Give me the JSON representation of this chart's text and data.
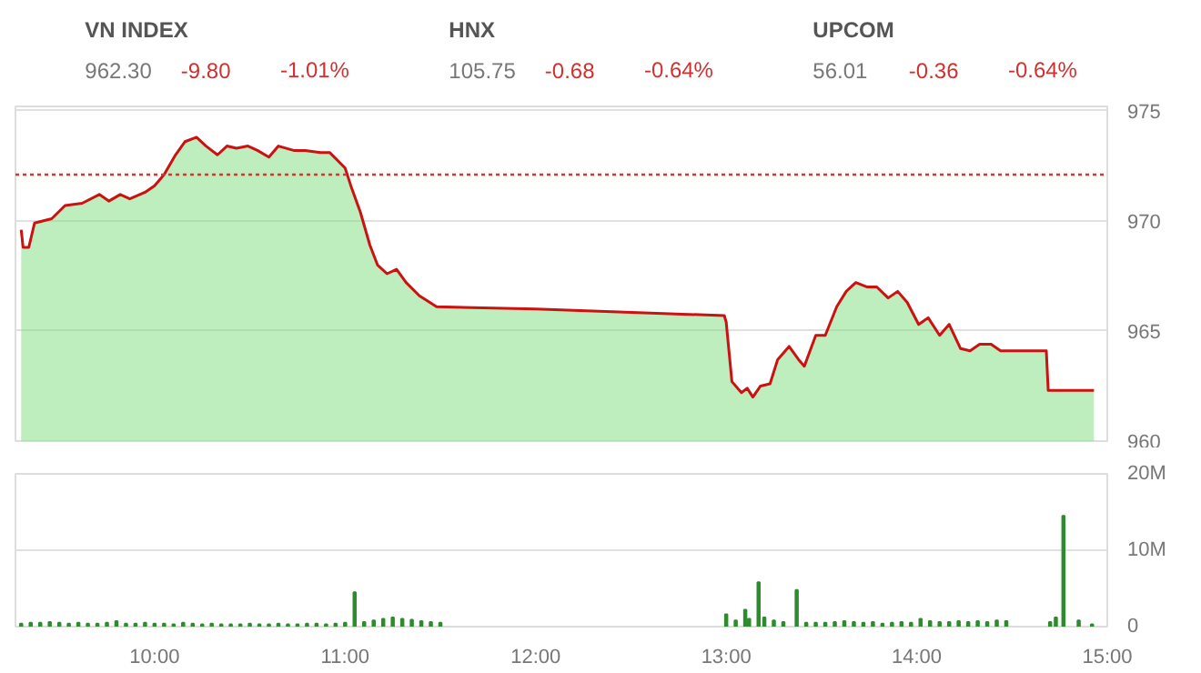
{
  "chart_data": [
    {
      "type": "other",
      "annotations": [
        "VN INDEX",
        "962.30",
        "-9.80",
        "-1.01%",
        "HNX",
        "105.75",
        "-0.68",
        "-0.64%",
        "UPCOM",
        "56.01",
        "-0.36",
        "-0.64%"
      ]
    },
    {
      "type": "area",
      "tick_labels": "y",
      "grid": "y",
      "xlim": [
        9.27,
        15.0
      ],
      "ylim": [
        960,
        975.2
      ],
      "yticks": [
        960,
        965,
        970,
        975
      ],
      "ref_lines": [
        {
          "axis": "y",
          "value": 972.1,
          "color": "#e03030",
          "line_style": "dotted"
        }
      ],
      "series": [
        {
          "color": "#7ddc7d",
          "x": [
            9.3,
            9.31,
            9.34,
            9.37,
            9.46,
            9.53,
            9.62,
            9.71,
            9.76,
            9.82,
            9.87,
            9.95,
            10.0,
            10.05,
            10.11,
            10.16,
            10.22,
            10.27,
            10.33,
            10.38,
            10.43,
            10.49,
            10.54,
            10.6,
            10.65,
            10.73,
            10.79,
            10.87,
            10.92,
            11.0,
            11.03,
            11.08,
            11.13,
            11.17,
            11.22,
            11.27,
            11.32,
            11.39,
            11.48,
            12.0,
            12.99,
            13.0,
            13.03,
            13.08,
            13.11,
            13.14,
            13.18,
            13.23,
            13.27,
            13.33,
            13.38,
            13.41,
            13.47,
            13.52,
            13.58,
            13.63,
            13.68,
            13.74,
            13.79,
            13.85,
            13.9,
            13.95,
            14.01,
            14.06,
            14.12,
            14.17,
            14.23,
            14.28,
            14.33,
            14.39,
            14.44,
            14.68,
            14.69,
            14.93
          ],
          "values": [
            969.6,
            968.8,
            968.8,
            969.9,
            970.1,
            970.7,
            970.8,
            971.2,
            970.9,
            971.2,
            971.0,
            971.3,
            971.6,
            972.1,
            973.0,
            973.6,
            973.8,
            973.4,
            973.0,
            973.4,
            973.3,
            973.4,
            973.2,
            972.9,
            973.4,
            973.2,
            973.2,
            973.1,
            973.1,
            972.4,
            971.6,
            970.4,
            968.9,
            968.0,
            967.6,
            967.8,
            967.2,
            966.6,
            966.1,
            966.0,
            965.7,
            965.4,
            962.7,
            962.2,
            962.4,
            962.0,
            962.5,
            962.6,
            963.7,
            964.3,
            963.7,
            963.4,
            964.8,
            964.8,
            966.1,
            966.8,
            967.2,
            967.0,
            967.0,
            966.5,
            966.8,
            966.3,
            965.3,
            965.6,
            964.8,
            965.3,
            964.2,
            964.1,
            964.4,
            964.4,
            964.1,
            964.1,
            962.3,
            962.3
          ]
        },
        {
          "type": "line",
          "color": "#cc1111",
          "x": [
            9.3,
            9.31,
            9.34,
            9.37,
            9.46,
            9.53,
            9.62,
            9.71,
            9.76,
            9.82,
            9.87,
            9.95,
            10.0,
            10.05,
            10.11,
            10.16,
            10.22,
            10.27,
            10.33,
            10.38,
            10.43,
            10.49,
            10.54,
            10.6,
            10.65,
            10.73,
            10.79,
            10.87,
            10.92,
            11.0,
            11.03,
            11.08,
            11.13,
            11.17,
            11.22,
            11.27,
            11.32,
            11.39,
            11.48,
            12.0,
            12.99,
            13.0,
            13.03,
            13.08,
            13.11,
            13.14,
            13.18,
            13.23,
            13.27,
            13.33,
            13.38,
            13.41,
            13.47,
            13.52,
            13.58,
            13.63,
            13.68,
            13.74,
            13.79,
            13.85,
            13.9,
            13.95,
            14.01,
            14.06,
            14.12,
            14.17,
            14.23,
            14.28,
            14.33,
            14.39,
            14.44,
            14.68,
            14.69,
            14.93
          ],
          "values": [
            969.6,
            968.8,
            968.8,
            969.9,
            970.1,
            970.7,
            970.8,
            971.2,
            970.9,
            971.2,
            971.0,
            971.3,
            971.6,
            972.1,
            973.0,
            973.6,
            973.8,
            973.4,
            973.0,
            973.4,
            973.3,
            973.4,
            973.2,
            972.9,
            973.4,
            973.2,
            973.2,
            973.1,
            973.1,
            972.4,
            971.6,
            970.4,
            968.9,
            968.0,
            967.6,
            967.8,
            967.2,
            966.6,
            966.1,
            966.0,
            965.7,
            965.4,
            962.7,
            962.2,
            962.4,
            962.0,
            962.5,
            962.6,
            963.7,
            964.3,
            963.7,
            963.4,
            964.8,
            964.8,
            966.1,
            966.8,
            967.2,
            967.0,
            967.0,
            966.5,
            966.8,
            966.3,
            965.3,
            965.6,
            964.8,
            965.3,
            964.2,
            964.1,
            964.4,
            964.4,
            964.1,
            964.1,
            962.3,
            962.3
          ]
        }
      ]
    },
    {
      "type": "bar",
      "grid": "y",
      "xlim": [
        9.27,
        15.0
      ],
      "xticks": [
        {
          "value": 10,
          "label": "10:00"
        },
        {
          "value": 11,
          "label": "11:00"
        },
        {
          "value": 12,
          "label": "12:00"
        },
        {
          "value": 13,
          "label": "13:00"
        },
        {
          "value": 14,
          "label": "14:00"
        },
        {
          "value": 15,
          "label": "15:00"
        }
      ],
      "ylim": [
        0,
        20
      ],
      "yticks": [
        0,
        {
          "value": 10,
          "label": "10M"
        },
        {
          "value": 20,
          "label": "20M"
        }
      ],
      "series": [
        {
          "color": "#2e8b2e",
          "x": [
            9.3,
            9.35,
            9.4,
            9.45,
            9.5,
            9.55,
            9.6,
            9.65,
            9.7,
            9.75,
            9.8,
            9.85,
            9.9,
            9.95,
            10.0,
            10.05,
            10.1,
            10.15,
            10.2,
            10.25,
            10.3,
            10.35,
            10.4,
            10.45,
            10.5,
            10.55,
            10.6,
            10.65,
            10.7,
            10.75,
            10.8,
            10.85,
            10.9,
            10.95,
            11.0,
            11.05,
            11.1,
            11.15,
            11.2,
            11.25,
            11.3,
            11.35,
            11.4,
            11.45,
            11.5,
            13.0,
            13.05,
            13.1,
            13.12,
            13.17,
            13.2,
            13.25,
            13.3,
            13.37,
            13.42,
            13.47,
            13.52,
            13.57,
            13.62,
            13.67,
            13.72,
            13.77,
            13.82,
            13.87,
            13.92,
            13.97,
            14.02,
            14.07,
            14.12,
            14.17,
            14.22,
            14.27,
            14.32,
            14.37,
            14.42,
            14.47,
            14.7,
            14.73,
            14.77,
            14.85,
            14.92
          ],
          "values": [
            0.4,
            0.5,
            0.5,
            0.6,
            0.5,
            0.4,
            0.5,
            0.4,
            0.4,
            0.5,
            0.7,
            0.4,
            0.4,
            0.5,
            0.4,
            0.4,
            0.3,
            0.5,
            0.4,
            0.3,
            0.4,
            0.3,
            0.3,
            0.3,
            0.4,
            0.3,
            0.3,
            0.4,
            0.3,
            0.3,
            0.4,
            0.4,
            0.3,
            0.4,
            0.5,
            4.5,
            0.6,
            0.8,
            1.0,
            1.2,
            1.0,
            0.9,
            0.7,
            0.6,
            0.5,
            1.6,
            0.8,
            2.2,
            1.0,
            5.8,
            1.2,
            0.8,
            0.6,
            4.8,
            0.5,
            0.5,
            0.5,
            0.6,
            0.7,
            0.6,
            0.5,
            0.6,
            0.4,
            0.5,
            0.6,
            0.5,
            1.0,
            0.7,
            0.6,
            0.6,
            0.7,
            0.6,
            0.7,
            0.6,
            0.8,
            0.7,
            0.6,
            1.2,
            14.5,
            0.8,
            0.3
          ]
        }
      ]
    }
  ]
}
